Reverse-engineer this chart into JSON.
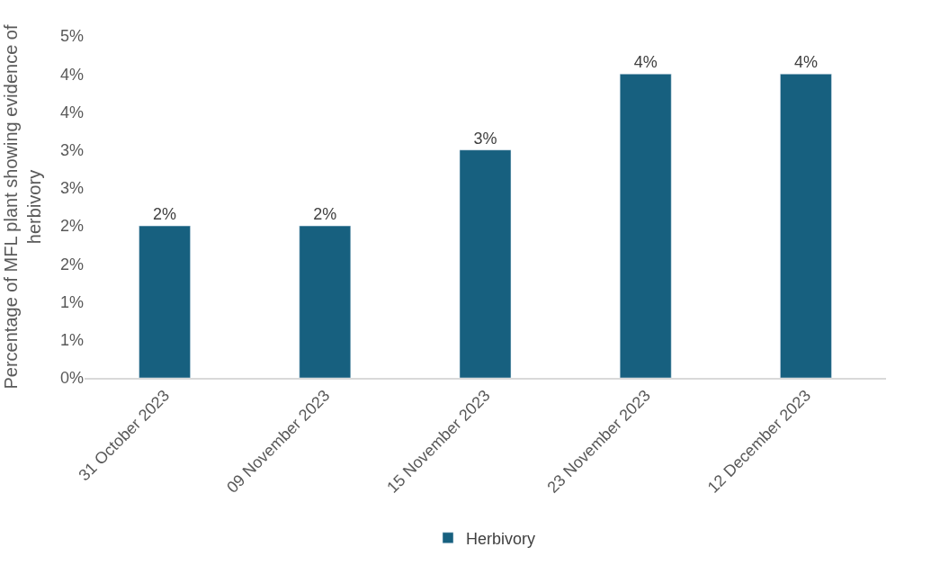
{
  "chart_data": {
    "type": "bar",
    "ylabel": "Percentage of MFL plant showing evidence of herbivory",
    "categories": [
      "31 October 2023",
      "09 November 2023",
      "15 November 2023",
      "23 November 2023",
      "12 December 2023"
    ],
    "series": [
      {
        "name": "Herbivory",
        "color": "#17607f",
        "values": [
          2,
          2,
          3,
          4,
          4
        ],
        "value_labels": [
          "2%",
          "2%",
          "3%",
          "4%",
          "4%"
        ]
      }
    ],
    "ylim": [
      0,
      4.5
    ],
    "yticks": [
      {
        "value": 0,
        "label": "0%"
      },
      {
        "value": 0.5,
        "label": "1%"
      },
      {
        "value": 1,
        "label": "1%"
      },
      {
        "value": 1.5,
        "label": "2%"
      },
      {
        "value": 2,
        "label": "2%"
      },
      {
        "value": 2.5,
        "label": "3%"
      },
      {
        "value": 3,
        "label": "3%"
      },
      {
        "value": 3.5,
        "label": "4%"
      },
      {
        "value": 4,
        "label": "4%"
      },
      {
        "value": 4.5,
        "label": "5%"
      }
    ],
    "legend": "bottom"
  }
}
